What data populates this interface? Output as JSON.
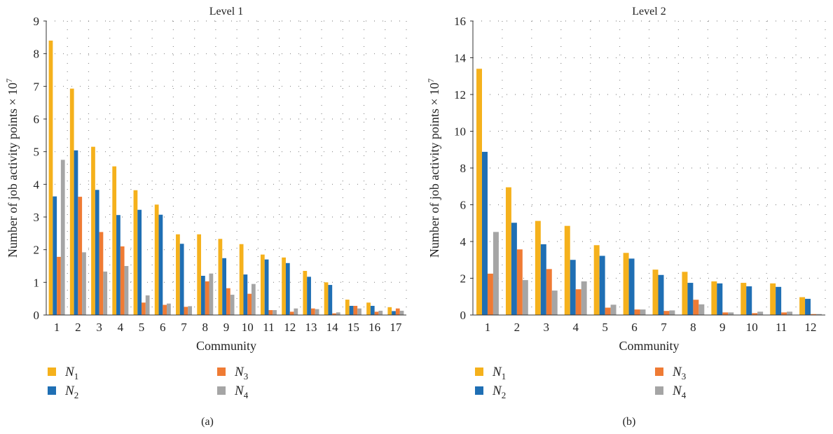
{
  "colors": {
    "N1": "#f5b11c",
    "N2": "#1f6fb4",
    "N3": "#ef7b34",
    "N4": "#a5a5a5",
    "axis": "#333333",
    "grid": "#8c8c8c"
  },
  "legend_symbols": [
    "N",
    "N",
    "N",
    "N"
  ],
  "legend_subscripts": [
    "1",
    "2",
    "3",
    "4"
  ],
  "chart_data": [
    {
      "type": "bar",
      "panel_label": "(a)",
      "title": "Level 1",
      "xlabel": "Community",
      "ylabel": "Number of job activity points × 10",
      "ylabel_exponent": "7",
      "ylim": [
        0,
        9
      ],
      "yticks": [
        0,
        1,
        2,
        3,
        4,
        5,
        6,
        7,
        8,
        9
      ],
      "grid": true,
      "legend_position": "bottom",
      "categories": [
        "1",
        "2",
        "3",
        "4",
        "5",
        "6",
        "7",
        "8",
        "9",
        "10",
        "11",
        "12",
        "13",
        "14",
        "15",
        "16",
        "17"
      ],
      "series": [
        {
          "name": "N1",
          "values": [
            8.4,
            6.93,
            5.15,
            4.55,
            3.82,
            3.38,
            2.47,
            2.47,
            2.33,
            2.17,
            1.85,
            1.76,
            1.35,
            1.0,
            0.47,
            0.38,
            0.24
          ]
        },
        {
          "name": "N2",
          "values": [
            3.63,
            5.04,
            3.83,
            3.06,
            3.22,
            3.07,
            2.18,
            1.2,
            1.74,
            1.24,
            1.7,
            1.59,
            1.17,
            0.92,
            0.28,
            0.28,
            0.12
          ]
        },
        {
          "name": "N3",
          "values": [
            1.78,
            3.62,
            2.54,
            2.1,
            0.38,
            0.31,
            0.25,
            1.03,
            0.82,
            0.65,
            0.15,
            0.1,
            0.2,
            0.05,
            0.28,
            0.1,
            0.2
          ]
        },
        {
          "name": "N4",
          "values": [
            4.75,
            1.92,
            1.33,
            1.5,
            0.6,
            0.35,
            0.27,
            1.27,
            0.62,
            0.95,
            0.15,
            0.2,
            0.18,
            0.08,
            0.2,
            0.13,
            0.13
          ]
        }
      ]
    },
    {
      "type": "bar",
      "panel_label": "(b)",
      "title": "Level 2",
      "xlabel": "Community",
      "ylabel": "Number of job activity points × 10",
      "ylabel_exponent": "7",
      "ylim": [
        0,
        16
      ],
      "yticks": [
        0,
        2,
        4,
        6,
        8,
        10,
        12,
        14,
        16
      ],
      "grid": true,
      "legend_position": "bottom",
      "categories": [
        "1",
        "2",
        "3",
        "4",
        "5",
        "6",
        "7",
        "8",
        "9",
        "10",
        "11",
        "12"
      ],
      "series": [
        {
          "name": "N1",
          "values": [
            13.4,
            6.95,
            5.12,
            4.85,
            3.8,
            3.38,
            2.47,
            2.35,
            1.83,
            1.75,
            1.72,
            0.97
          ]
        },
        {
          "name": "N2",
          "values": [
            8.88,
            5.02,
            3.85,
            3.0,
            3.22,
            3.07,
            2.18,
            1.75,
            1.72,
            1.56,
            1.53,
            0.88
          ]
        },
        {
          "name": "N3",
          "values": [
            2.25,
            3.57,
            2.5,
            1.4,
            0.4,
            0.3,
            0.22,
            0.83,
            0.14,
            0.1,
            0.14,
            0.05
          ]
        },
        {
          "name": "N4",
          "values": [
            4.52,
            1.9,
            1.33,
            1.83,
            0.56,
            0.3,
            0.25,
            0.58,
            0.14,
            0.18,
            0.18,
            0.05
          ]
        }
      ]
    }
  ]
}
